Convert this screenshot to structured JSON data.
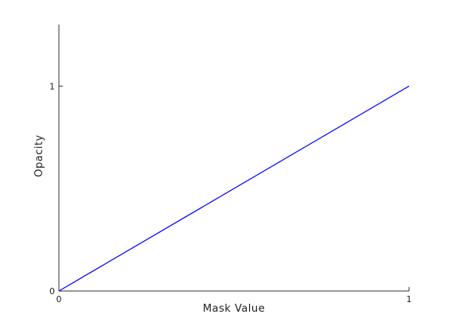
{
  "chart_data": {
    "type": "line",
    "title": "",
    "xlabel": "Mask Value",
    "ylabel": "Opacity",
    "xlim": [
      0,
      1
    ],
    "ylim": [
      0,
      1.3
    ],
    "xticks": [
      0,
      1
    ],
    "yticks": [
      0,
      1
    ],
    "xtick_labels": [
      "0",
      "1"
    ],
    "ytick_labels": [
      "0",
      "1"
    ],
    "grid": false,
    "series": [
      {
        "color": "#0000ff",
        "x": [
          0,
          1
        ],
        "y": [
          0,
          1
        ]
      }
    ]
  }
}
